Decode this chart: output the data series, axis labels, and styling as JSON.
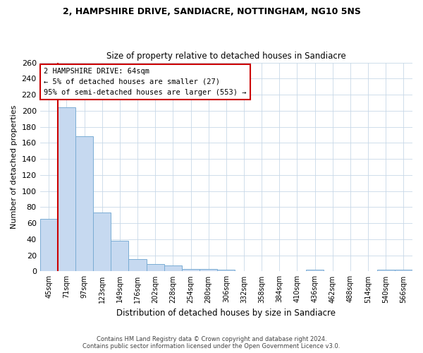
{
  "title": "2, HAMPSHIRE DRIVE, SANDIACRE, NOTTINGHAM, NG10 5NS",
  "subtitle": "Size of property relative to detached houses in Sandiacre",
  "xlabel": "Distribution of detached houses by size in Sandiacre",
  "ylabel": "Number of detached properties",
  "categories": [
    "45sqm",
    "71sqm",
    "97sqm",
    "123sqm",
    "149sqm",
    "176sqm",
    "202sqm",
    "228sqm",
    "254sqm",
    "280sqm",
    "306sqm",
    "332sqm",
    "358sqm",
    "384sqm",
    "410sqm",
    "436sqm",
    "462sqm",
    "488sqm",
    "514sqm",
    "540sqm",
    "566sqm"
  ],
  "values": [
    65,
    204,
    168,
    73,
    38,
    15,
    9,
    7,
    3,
    3,
    2,
    0,
    0,
    0,
    0,
    2,
    0,
    0,
    0,
    2,
    2
  ],
  "bar_color": "#c6d9f0",
  "bar_edge_color": "#7aadd4",
  "ylim": [
    0,
    260
  ],
  "yticks": [
    0,
    20,
    40,
    60,
    80,
    100,
    120,
    140,
    160,
    180,
    200,
    220,
    240,
    260
  ],
  "property_line_color": "#cc0000",
  "annotation_title": "2 HAMPSHIRE DRIVE: 64sqm",
  "annotation_line1": "← 5% of detached houses are smaller (27)",
  "annotation_line2": "95% of semi-detached houses are larger (553) →",
  "annotation_box_color": "#ffffff",
  "annotation_box_edge": "#cc0000",
  "footer_line1": "Contains HM Land Registry data © Crown copyright and database right 2024.",
  "footer_line2": "Contains public sector information licensed under the Open Government Licence v3.0.",
  "background_color": "#ffffff",
  "grid_color": "#c8d8e8"
}
